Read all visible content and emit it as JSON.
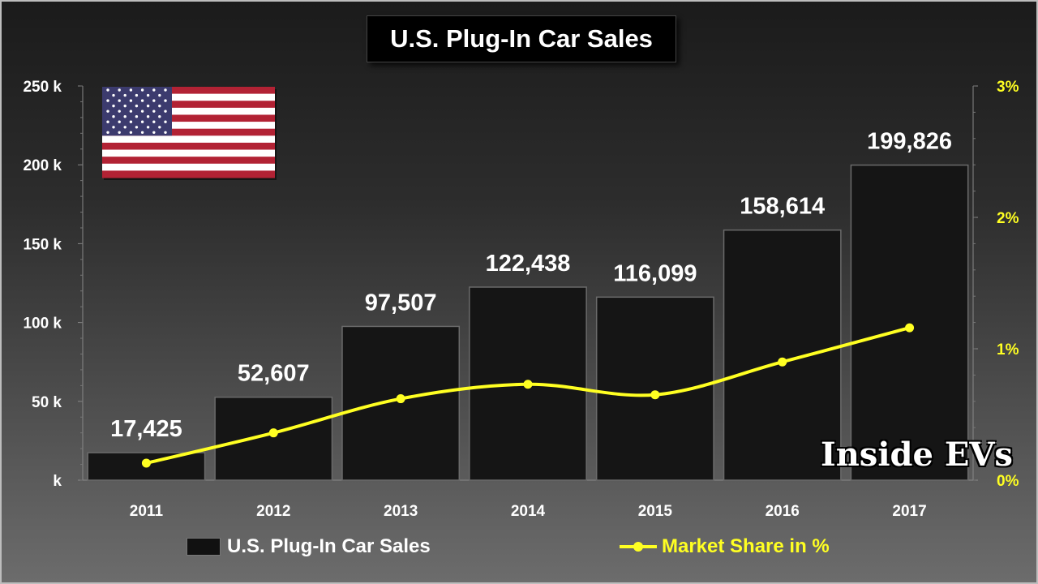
{
  "chart_data": {
    "type": "bar",
    "title": "U.S. Plug-In Car Sales",
    "categories": [
      "2011",
      "2012",
      "2013",
      "2014",
      "2015",
      "2016",
      "2017"
    ],
    "series": [
      {
        "name": "U.S. Plug-In Car Sales",
        "type": "bar",
        "axis": "left",
        "values": [
          17425,
          52607,
          97507,
          122438,
          116099,
          158614,
          199826
        ],
        "labels": [
          "17,425",
          "52,607",
          "97,507",
          "122,438",
          "116,099",
          "158,614",
          "199,826"
        ]
      },
      {
        "name": "Market Share in %",
        "type": "line",
        "axis": "right",
        "smooth": true,
        "values": [
          0.13,
          0.36,
          0.62,
          0.73,
          0.65,
          0.9,
          1.16
        ]
      }
    ],
    "y_left": {
      "min": 0,
      "max": 250000,
      "ticks": [
        0,
        50000,
        100000,
        150000,
        200000,
        250000
      ],
      "tick_labels": [
        "k",
        "50 k",
        "100 k",
        "150 k",
        "200 k",
        "250 k"
      ]
    },
    "y_right": {
      "min": 0,
      "max": 3,
      "ticks": [
        0,
        1,
        2,
        3
      ],
      "tick_labels": [
        "0%",
        "1%",
        "2%",
        "3%"
      ]
    },
    "grid": false,
    "legend_position": "bottom",
    "colors": {
      "bars": "#151515",
      "line": "#ffff22",
      "right_axis_text": "#ffff22",
      "text": "#ffffff"
    }
  },
  "watermark": "Inside EVs",
  "flag_icon": "us-flag-icon"
}
